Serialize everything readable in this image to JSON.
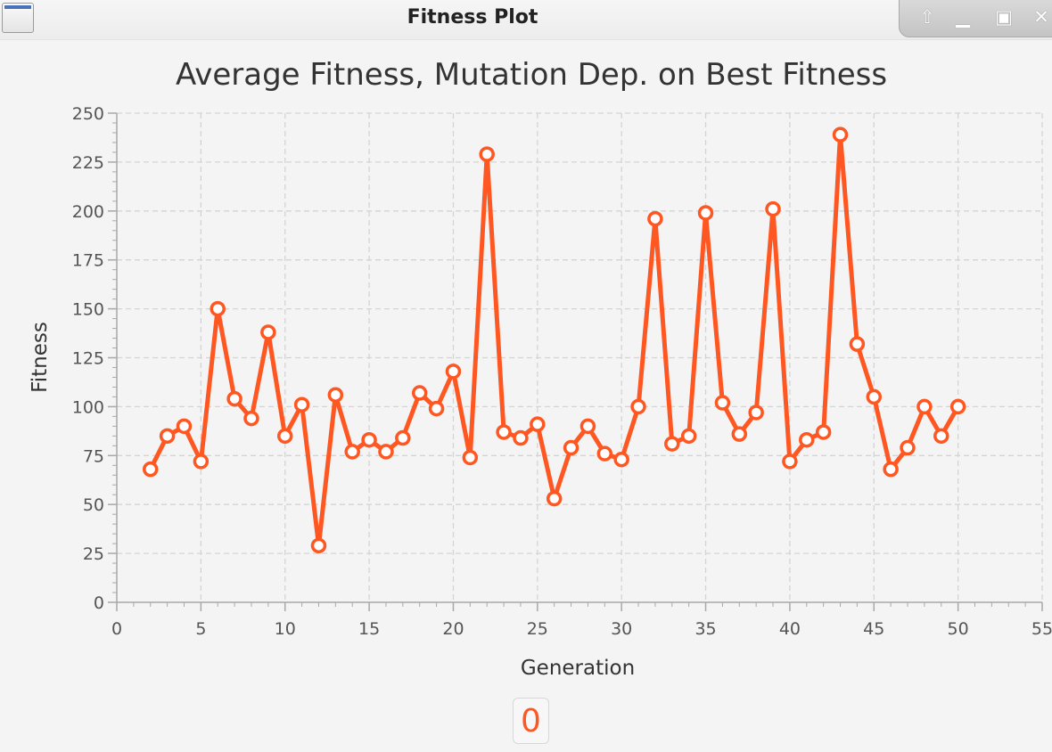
{
  "window": {
    "title": "Fitness Plot",
    "controls": [
      {
        "name": "shade-icon",
        "glyph": "⇧"
      },
      {
        "name": "minimize-icon",
        "glyph": "▁"
      },
      {
        "name": "maximize-icon",
        "glyph": "▣"
      },
      {
        "name": "close-icon",
        "glyph": "✕"
      }
    ]
  },
  "counter": {
    "value": "0"
  },
  "colors": {
    "series": "#ff5722",
    "grid": "#d4d4d4",
    "axis": "#a8a8a8",
    "text": "#333333",
    "tick_text": "#555555"
  },
  "chart_data": {
    "type": "line",
    "title": "Average Fitness, Mutation Dep. on Best Fitness",
    "xlabel": "Generation",
    "ylabel": "Fitness",
    "xlim": [
      0,
      55
    ],
    "ylim": [
      0,
      250
    ],
    "xticks": [
      0,
      5,
      10,
      15,
      20,
      25,
      30,
      35,
      40,
      45,
      50,
      55
    ],
    "yticks": [
      0,
      25,
      50,
      75,
      100,
      125,
      150,
      175,
      200,
      225,
      250
    ],
    "grid": true,
    "legend": "none",
    "series": [
      {
        "x": [
          2,
          3,
          4,
          5,
          6,
          7,
          8,
          9,
          10,
          11,
          12,
          13,
          14,
          15,
          16,
          17,
          18,
          19,
          20,
          21,
          22,
          23,
          24,
          25,
          26,
          27,
          28,
          29,
          30,
          31,
          32,
          33,
          34,
          35,
          36,
          37,
          38,
          39,
          40,
          41,
          42,
          43,
          44,
          45,
          46,
          47,
          48,
          49,
          50
        ],
        "values": [
          68,
          85,
          90,
          72,
          150,
          104,
          94,
          138,
          85,
          101,
          29,
          106,
          77,
          83,
          77,
          84,
          107,
          99,
          118,
          74,
          229,
          87,
          84,
          91,
          53,
          79,
          90,
          76,
          73,
          100,
          196,
          81,
          85,
          199,
          102,
          86,
          97,
          201,
          72,
          83,
          87,
          239,
          132,
          105,
          68,
          79,
          100,
          85,
          100
        ]
      }
    ]
  }
}
